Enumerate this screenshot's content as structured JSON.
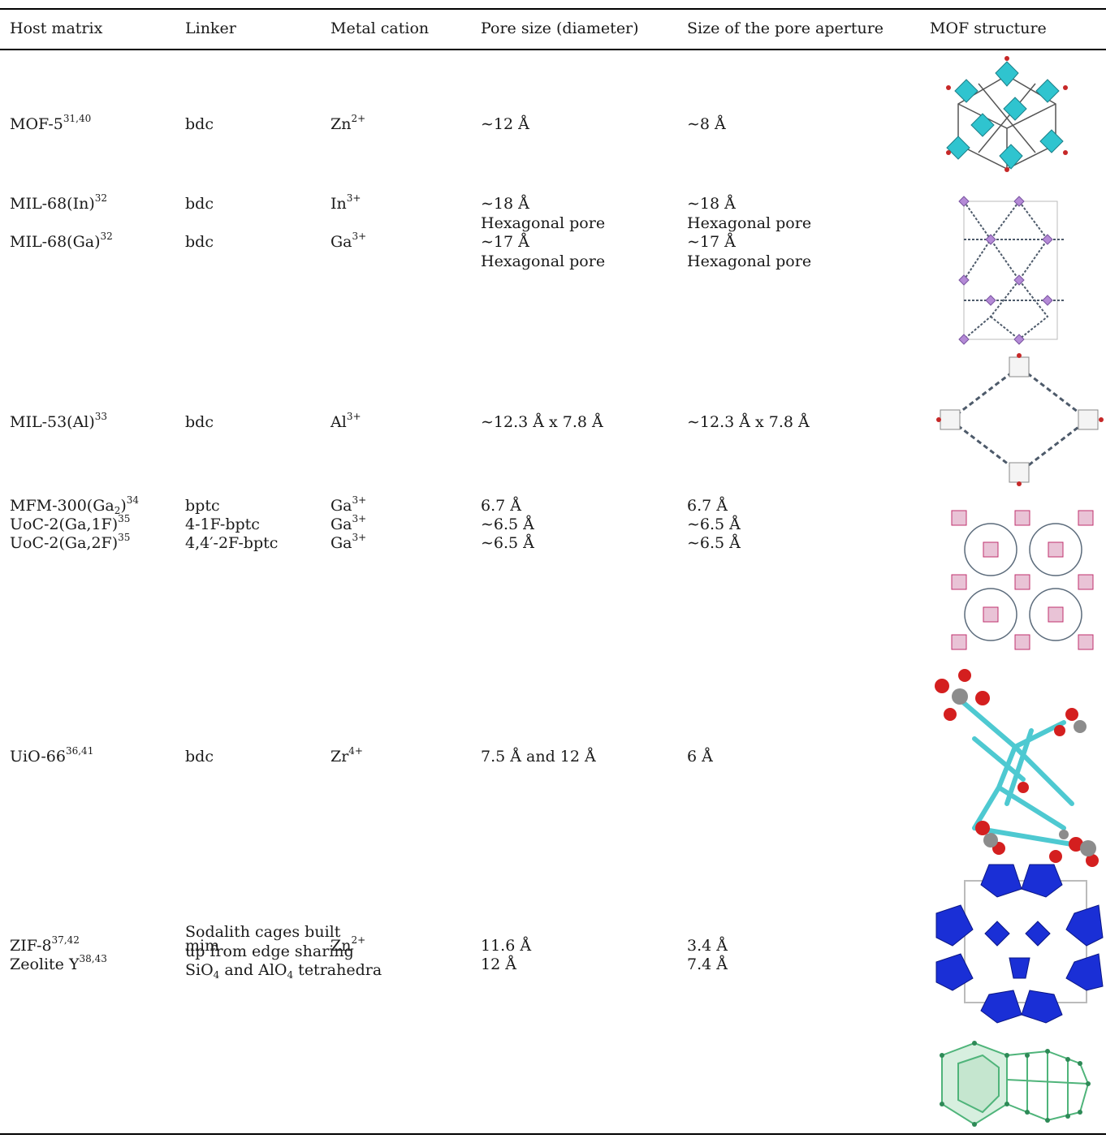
{
  "table": {
    "headers": [
      "Host matrix",
      "Linker",
      "Metal cation",
      "Pore size (diameter)",
      "Size of the pore aperture",
      "MOF structure"
    ],
    "rows": [
      {
        "host": "MOF-5",
        "host_ref": "31,40",
        "linker": "bdc",
        "cation": "Zn",
        "cation_charge": "2+",
        "pore": "∼12 Å",
        "aperture": "∼8 Å",
        "structure_icon": "mof5-structure-image"
      },
      {
        "host": "MIL-68(In)",
        "host_ref": "32",
        "linker": "bdc",
        "cation": "In",
        "cation_charge": "3+",
        "pore": "∼18 Å",
        "pore_note": "Hexagonal pore",
        "aperture": "∼18 Å",
        "aperture_note": "Hexagonal pore",
        "structure_icon": "mil68-structure-image"
      },
      {
        "host": "MIL-68(Ga)",
        "host_ref": "32",
        "linker": "bdc",
        "cation": "Ga",
        "cation_charge": "3+",
        "pore": "∼17 Å",
        "pore_note": "Hexagonal pore",
        "aperture": "∼17 Å",
        "aperture_note": "Hexagonal pore"
      },
      {
        "host": "MIL-53(Al)",
        "host_ref": "33",
        "linker": "bdc",
        "cation": "Al",
        "cation_charge": "3+",
        "pore": "∼12.3 Å x 7.8 Å",
        "aperture": "∼12.3 Å x 7.8 Å",
        "structure_icon": "mil53-structure-image"
      },
      {
        "host": "MFM-300(Ga",
        "host_sub": "2",
        "host_close": ")",
        "host_ref": "34",
        "linker": "bptc",
        "cation": "Ga",
        "cation_charge": "3+",
        "pore": "6.7 Å",
        "aperture": "6.7 Å",
        "structure_icon": "mfm300-structure-image"
      },
      {
        "host": "UoC-2(Ga,1F)",
        "host_ref": "35",
        "linker": "4-1F-bptc",
        "cation": "Ga",
        "cation_charge": "3+",
        "pore": "∼6.5 Å",
        "aperture": "∼6.5 Å"
      },
      {
        "host": "UoC-2(Ga,2F)",
        "host_ref": "35",
        "linker": "4,4′-2F-bptc",
        "cation": "Ga",
        "cation_charge": "3+",
        "pore": "∼6.5 Å",
        "aperture": "∼6.5 Å"
      },
      {
        "host": "UiO-66",
        "host_ref": "36,41",
        "linker": "bdc",
        "cation": "Zr",
        "cation_charge": "4+",
        "pore": "7.5 Å and 12 Å",
        "aperture": "6 Å",
        "structure_icon": "uio66-structure-image"
      },
      {
        "host": "ZIF-8",
        "host_ref": "37,42",
        "linker": "mim",
        "cation": "Zn",
        "cation_charge": "2+",
        "pore": "11.6 Å",
        "aperture": "3.4 Å",
        "structure_icon": "zif8-structure-image"
      },
      {
        "host": "Zeolite Y",
        "host_ref": "38,43",
        "linker_lines": [
          "Sodalith cages built",
          "up from edge sharing"
        ],
        "linker_l3a": "SiO",
        "linker_l3b": "4",
        "linker_l3c": " and AlO",
        "linker_l3d": "4",
        "linker_l3e": " tetrahedra",
        "pore": "12 Å",
        "aperture": "7.4 Å",
        "structure_icon": "zeolite-structure-image"
      }
    ]
  },
  "colors": {
    "mof5": "#2fc4cf",
    "mil68": "#b48ad6",
    "zif8": "#1a2fd6",
    "zeolite": "#4fb47a",
    "uio_o": "#d41f1f",
    "uio_c": "#4ec9d1"
  }
}
